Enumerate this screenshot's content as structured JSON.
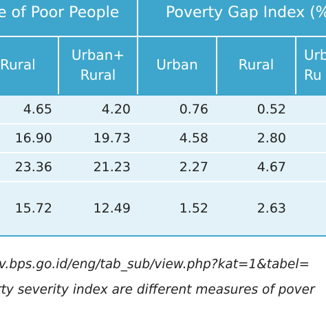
{
  "table": {
    "group_headers": {
      "poor_people": "e of Poor People",
      "poverty_gap": "Poverty Gap Index (%"
    },
    "column_headers": {
      "col_rural": "Rural",
      "col_urban_rural_line1": "Urban+",
      "col_urban_rural_line2": "Rural",
      "col_gap_urban": "Urban",
      "col_gap_rural": "Rural",
      "col_gap_urban_rural_partial_line1": "Urb",
      "col_gap_urban_rural_partial_line2": "Ru"
    },
    "rows": [
      {
        "rural": "4.65",
        "urban_rural": "4.20",
        "gap_urban": "0.76",
        "gap_rural": "0.52"
      },
      {
        "rural": "16.90",
        "urban_rural": "19.73",
        "gap_urban": "4.58",
        "gap_rural": "2.80"
      },
      {
        "rural": "23.36",
        "urban_rural": "21.23",
        "gap_urban": "2.27",
        "gap_rural": "4.67"
      },
      {
        "rural": "15.72",
        "urban_rural": "12.49",
        "gap_urban": "1.52",
        "gap_rural": "2.63"
      }
    ]
  },
  "notes": {
    "source_line": "v.bps.go.id/eng/tab_sub/view.php?kat=1&tabel=",
    "definition_line": "rty severity index are different measures of pover"
  },
  "colors": {
    "header_band": "#3ea6cc",
    "row_shade": "#e3f2f8",
    "text": "#222222"
  }
}
